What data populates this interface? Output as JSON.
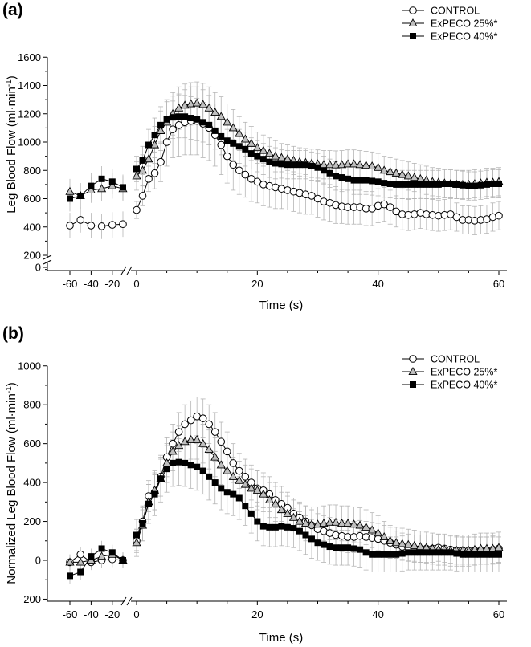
{
  "chart_data": [
    {
      "type": "line",
      "panel_label": "(a)",
      "xlabel": "Time (s)",
      "ylabel": "Leg Blood Flow (ml·min⁻¹)",
      "ylabel_main": "Leg Blood Flow (ml·min",
      "ylabel_sup": "-1",
      "ylabel_end": ")",
      "y_ticks": [
        "0",
        "200",
        "400",
        "600",
        "800",
        "1000",
        "1200",
        "1400",
        "1600"
      ],
      "x_ticks": [
        "-60",
        "-40",
        "-20",
        "0",
        "20",
        "40",
        "60"
      ],
      "ylim": [
        0,
        1600
      ],
      "x_pre": [
        -60,
        -50,
        -40,
        -30,
        -20,
        -10
      ],
      "x_main": [
        0,
        1,
        2,
        3,
        4,
        5,
        6,
        7,
        8,
        9,
        10,
        11,
        12,
        13,
        14,
        15,
        16,
        17,
        18,
        19,
        20,
        21,
        22,
        23,
        24,
        25,
        26,
        27,
        28,
        29,
        30,
        31,
        32,
        33,
        34,
        35,
        36,
        37,
        38,
        39,
        40,
        41,
        42,
        43,
        44,
        45,
        46,
        47,
        48,
        49,
        50,
        51,
        52,
        53,
        54,
        55,
        56,
        57,
        58,
        59,
        60
      ],
      "legend": [
        "CONTROL",
        "ExPECO 25%*",
        "ExPECO 40%*"
      ],
      "series": [
        {
          "name": "CONTROL",
          "marker": "circle",
          "pre_values": [
            410,
            450,
            410,
            405,
            415,
            420
          ],
          "values": [
            520,
            620,
            740,
            780,
            860,
            1000,
            1090,
            1120,
            1140,
            1150,
            1150,
            1130,
            1100,
            1050,
            980,
            900,
            840,
            800,
            770,
            740,
            720,
            700,
            690,
            680,
            670,
            660,
            650,
            640,
            630,
            620,
            600,
            580,
            570,
            555,
            545,
            540,
            540,
            540,
            530,
            530,
            550,
            560,
            540,
            510,
            490,
            485,
            490,
            500,
            490,
            485,
            480,
            485,
            490,
            470,
            450,
            450,
            445,
            450,
            455,
            470,
            480
          ],
          "errors": [
            60,
            70,
            90,
            110,
            140,
            170,
            200,
            220,
            230,
            240,
            240,
            240,
            230,
            220,
            210,
            190,
            180,
            170,
            160,
            160,
            150,
            150,
            150,
            150,
            140,
            140,
            140,
            140,
            140,
            130,
            130,
            130,
            130,
            130,
            120,
            120,
            120,
            120,
            120,
            120,
            120,
            120,
            120,
            110,
            110,
            110,
            110,
            110,
            110,
            110,
            110,
            110,
            110,
            100,
            100,
            100,
            100,
            100,
            100,
            100,
            100
          ]
        },
        {
          "name": "ExPECO 25%*",
          "marker": "triangle",
          "pre_values": [
            650,
            620,
            660,
            670,
            690,
            670
          ],
          "values": [
            760,
            800,
            880,
            980,
            1080,
            1140,
            1200,
            1240,
            1260,
            1270,
            1275,
            1265,
            1240,
            1210,
            1180,
            1140,
            1100,
            1060,
            1020,
            990,
            960,
            940,
            920,
            900,
            890,
            880,
            870,
            860,
            855,
            850,
            845,
            840,
            840,
            838,
            840,
            845,
            845,
            840,
            835,
            830,
            820,
            800,
            790,
            780,
            770,
            760,
            750,
            740,
            730,
            720,
            715,
            710,
            705,
            700,
            700,
            700,
            705,
            710,
            715,
            715,
            720
          ],
          "errors": [
            100,
            110,
            120,
            130,
            140,
            145,
            150,
            150,
            150,
            150,
            150,
            150,
            150,
            140,
            140,
            130,
            130,
            120,
            120,
            120,
            110,
            110,
            110,
            110,
            100,
            100,
            100,
            100,
            100,
            100,
            100,
            100,
            100,
            100,
            100,
            100,
            100,
            100,
            100,
            100,
            100,
            100,
            100,
            100,
            100,
            100,
            100,
            100,
            100,
            100,
            100,
            100,
            100,
            100,
            100,
            100,
            100,
            100,
            100,
            100,
            100
          ]
        },
        {
          "name": "ExPECO 40%*",
          "marker": "square",
          "pre_values": [
            600,
            620,
            690,
            740,
            720,
            680
          ],
          "values": [
            810,
            870,
            980,
            1050,
            1120,
            1160,
            1175,
            1180,
            1180,
            1170,
            1160,
            1140,
            1120,
            1080,
            1040,
            1010,
            990,
            970,
            950,
            920,
            900,
            880,
            860,
            850,
            845,
            840,
            840,
            840,
            840,
            830,
            820,
            800,
            780,
            760,
            750,
            740,
            730,
            730,
            730,
            725,
            720,
            710,
            705,
            700,
            700,
            700,
            700,
            700,
            700,
            700,
            700,
            705,
            705,
            700,
            695,
            690,
            690,
            695,
            700,
            705,
            705
          ],
          "errors": [
            90,
            100,
            110,
            120,
            130,
            140,
            150,
            150,
            150,
            150,
            150,
            140,
            140,
            130,
            130,
            130,
            120,
            120,
            120,
            110,
            110,
            110,
            110,
            110,
            100,
            100,
            100,
            100,
            100,
            100,
            100,
            100,
            100,
            100,
            100,
            100,
            100,
            100,
            100,
            100,
            100,
            100,
            100,
            100,
            100,
            100,
            100,
            100,
            100,
            100,
            100,
            100,
            100,
            100,
            100,
            100,
            100,
            100,
            100,
            100,
            100
          ]
        }
      ]
    },
    {
      "type": "line",
      "panel_label": "(b)",
      "xlabel": "Time (s)",
      "ylabel": "Normalized Leg Blood Flow (ml·min⁻¹)",
      "ylabel_main": "Normalized Leg Blood Flow (ml·min",
      "ylabel_sup": "-1",
      "ylabel_end": ")",
      "y_ticks": [
        "-200",
        "0",
        "200",
        "400",
        "600",
        "800",
        "1000"
      ],
      "x_ticks": [
        "-60",
        "-40",
        "-20",
        "0",
        "20",
        "40",
        "60"
      ],
      "ylim": [
        -200,
        1000
      ],
      "x_pre": [
        -60,
        -50,
        -40,
        -30,
        -20,
        -10
      ],
      "x_main": [
        0,
        1,
        2,
        3,
        4,
        5,
        6,
        7,
        8,
        9,
        10,
        11,
        12,
        13,
        14,
        15,
        16,
        17,
        18,
        19,
        20,
        21,
        22,
        23,
        24,
        25,
        26,
        27,
        28,
        29,
        30,
        31,
        32,
        33,
        34,
        35,
        36,
        37,
        38,
        39,
        40,
        41,
        42,
        43,
        44,
        45,
        46,
        47,
        48,
        49,
        50,
        51,
        52,
        53,
        54,
        55,
        56,
        57,
        58,
        59,
        60
      ],
      "legend": [
        "CONTROL",
        "ExPECO 25%*",
        "ExPECO 40%*"
      ],
      "series": [
        {
          "name": "CONTROL",
          "marker": "circle",
          "pre_values": [
            -10,
            30,
            -10,
            0,
            5,
            0
          ],
          "values": [
            100,
            200,
            330,
            350,
            430,
            530,
            600,
            660,
            700,
            720,
            740,
            730,
            700,
            660,
            610,
            560,
            500,
            460,
            430,
            400,
            370,
            360,
            340,
            310,
            290,
            270,
            240,
            220,
            200,
            180,
            160,
            150,
            140,
            130,
            125,
            120,
            120,
            125,
            120,
            115,
            110,
            100,
            90,
            80,
            70,
            65,
            60,
            60,
            60,
            60,
            65,
            60,
            55,
            50,
            50,
            50,
            50,
            50,
            50,
            55,
            60
          ],
          "errors": [
            60,
            70,
            80,
            90,
            100,
            100,
            100,
            100,
            100,
            100,
            100,
            100,
            100,
            100,
            100,
            100,
            100,
            90,
            90,
            90,
            90,
            90,
            90,
            90,
            90,
            80,
            80,
            80,
            80,
            80,
            80,
            80,
            80,
            80,
            80,
            80,
            80,
            80,
            80,
            80,
            80,
            80,
            80,
            70,
            70,
            70,
            70,
            70,
            70,
            70,
            70,
            70,
            70,
            70,
            70,
            70,
            70,
            70,
            70,
            70,
            70
          ]
        },
        {
          "name": "ExPECO 25%*",
          "marker": "triangle",
          "pre_values": [
            -10,
            -10,
            0,
            20,
            30,
            0
          ],
          "values": [
            90,
            180,
            300,
            360,
            420,
            500,
            560,
            590,
            610,
            620,
            620,
            600,
            570,
            530,
            490,
            460,
            430,
            410,
            390,
            370,
            360,
            340,
            310,
            290,
            260,
            240,
            220,
            200,
            190,
            185,
            185,
            190,
            195,
            195,
            190,
            190,
            185,
            180,
            170,
            155,
            140,
            120,
            100,
            90,
            85,
            80,
            75,
            70,
            65,
            60,
            55,
            55,
            50,
            50,
            50,
            50,
            55,
            60,
            60,
            60,
            65
          ],
          "errors": [
            70,
            80,
            90,
            100,
            100,
            100,
            100,
            100,
            100,
            100,
            100,
            100,
            100,
            100,
            100,
            100,
            100,
            100,
            100,
            100,
            100,
            90,
            90,
            90,
            90,
            90,
            90,
            90,
            90,
            90,
            90,
            90,
            90,
            90,
            90,
            90,
            90,
            90,
            90,
            90,
            90,
            80,
            80,
            80,
            80,
            80,
            80,
            80,
            80,
            80,
            80,
            80,
            80,
            80,
            80,
            80,
            80,
            80,
            80,
            80,
            80
          ]
        },
        {
          "name": "ExPECO 40%*",
          "marker": "square",
          "pre_values": [
            -80,
            -60,
            20,
            60,
            40,
            0
          ],
          "values": [
            130,
            190,
            290,
            340,
            420,
            470,
            500,
            505,
            500,
            490,
            480,
            460,
            430,
            400,
            370,
            350,
            340,
            320,
            280,
            240,
            200,
            175,
            170,
            170,
            175,
            170,
            165,
            150,
            130,
            110,
            90,
            80,
            70,
            65,
            65,
            65,
            60,
            55,
            40,
            30,
            30,
            30,
            30,
            30,
            35,
            40,
            40,
            40,
            40,
            40,
            40,
            40,
            40,
            35,
            30,
            30,
            30,
            30,
            30,
            30,
            30
          ],
          "errors": [
            80,
            90,
            100,
            110,
            120,
            120,
            120,
            120,
            120,
            120,
            120,
            120,
            120,
            110,
            110,
            110,
            110,
            110,
            100,
            100,
            100,
            100,
            100,
            100,
            100,
            100,
            100,
            100,
            100,
            100,
            90,
            90,
            90,
            90,
            90,
            90,
            90,
            90,
            90,
            90,
            90,
            90,
            90,
            90,
            90,
            90,
            90,
            90,
            90,
            90,
            90,
            90,
            90,
            90,
            90,
            90,
            90,
            90,
            90,
            90,
            90
          ]
        }
      ]
    }
  ]
}
